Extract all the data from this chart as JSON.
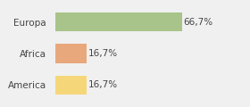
{
  "categories": [
    "Europa",
    "Africa",
    "America"
  ],
  "values": [
    66.7,
    16.7,
    16.7
  ],
  "labels": [
    "66,7%",
    "16,7%",
    "16,7%"
  ],
  "bar_colors": [
    "#a8c48a",
    "#e8a87c",
    "#f5d77a"
  ],
  "background_color": "#f0f0f0",
  "xlim": [
    0,
    100
  ],
  "label_fontsize": 7.5,
  "tick_fontsize": 7.5,
  "bar_height": 0.6
}
